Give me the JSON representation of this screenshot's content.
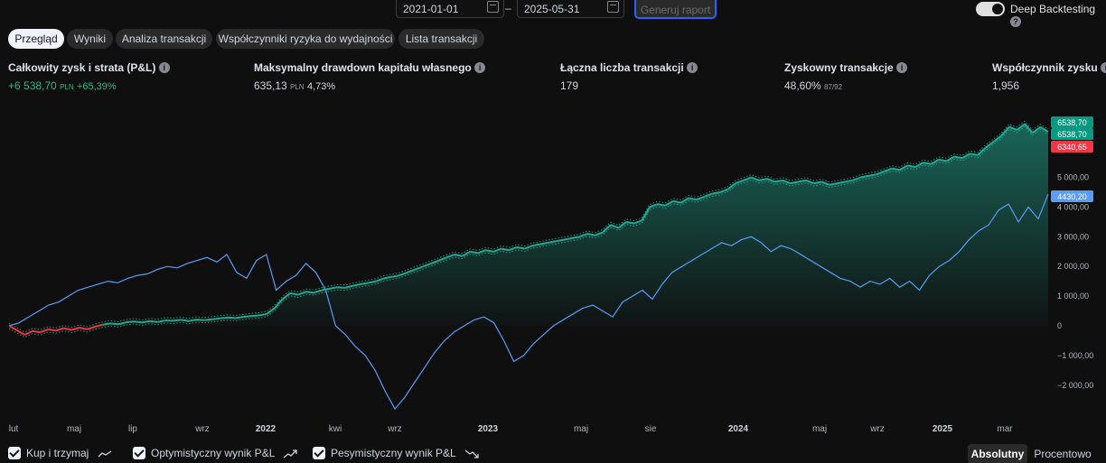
{
  "toolbar": {
    "date_from": "2021-01-01",
    "date_to": "2025-05-31",
    "date_separator": "–",
    "generate_button": "Generuj raport",
    "deep_backtesting_label": "Deep Backtesting",
    "deep_backtesting_enabled": true
  },
  "tabs": [
    {
      "label": "Przegląd",
      "active": true
    },
    {
      "label": "Wyniki",
      "active": false
    },
    {
      "label": "Analiza transakcji",
      "active": false
    },
    {
      "label": "Współczynniki ryzyka do wydajności",
      "active": false
    },
    {
      "label": "Lista transakcji",
      "active": false
    }
  ],
  "stats": {
    "pnl": {
      "label": "Całkowity zysk i strata (P&L)",
      "value": "+6 538,70",
      "unit": "PLN",
      "extra": "+65,39%"
    },
    "drawdown": {
      "label": "Maksymalny drawdown kapitału własnego",
      "value": "635,13",
      "unit": "PLN",
      "extra": "4,73%"
    },
    "trades": {
      "label": "Łączna liczba transakcji",
      "value": "179"
    },
    "profitable": {
      "label": "Zyskowny transakcje",
      "value": "48,60%",
      "extra": "87/92"
    },
    "profit_factor": {
      "label": "Współczynnik zysku",
      "value": "1,956"
    }
  },
  "colors": {
    "equity": "#22ab94",
    "buy_hold": "#5b9cf6",
    "negative": "#f23645",
    "background": "#0f0f0f"
  },
  "chart_data": {
    "type": "area",
    "x_tick_labels": [
      {
        "label": "lut",
        "bold": false
      },
      {
        "label": "maj",
        "bold": false
      },
      {
        "label": "lip",
        "bold": false
      },
      {
        "label": "wrz",
        "bold": false
      },
      {
        "label": "2022",
        "bold": true
      },
      {
        "label": "kwi",
        "bold": false
      },
      {
        "label": "wrz",
        "bold": false
      },
      {
        "label": "2023",
        "bold": true
      },
      {
        "label": "maj",
        "bold": false
      },
      {
        "label": "sie",
        "bold": false
      },
      {
        "label": "2024",
        "bold": true
      },
      {
        "label": "maj",
        "bold": false
      },
      {
        "label": "wrz",
        "bold": false
      },
      {
        "label": "2025",
        "bold": true
      },
      {
        "label": "mar",
        "bold": false
      }
    ],
    "y_tick_labels": [
      "5 000,00",
      "4 000,00",
      "3 000,00",
      "2 000,00",
      "1 000,00",
      "0",
      "−1 000,00",
      "−2 000,00"
    ],
    "y_ticks": [
      5000,
      4000,
      3000,
      2000,
      1000,
      0,
      -1000,
      -2000
    ],
    "ylim": [
      -3000,
      7500
    ],
    "price_tags": [
      {
        "label": "6538,70",
        "value": 6538.7,
        "color": "#089981"
      },
      {
        "label": "6538,70",
        "value": 6538.7,
        "color": "#089981"
      },
      {
        "label": "6340,65",
        "value": 6340.65,
        "color": "#f23645"
      },
      {
        "label": "4430,20",
        "value": 4430.2,
        "color": "#5b9cf6"
      }
    ],
    "series": [
      {
        "name": "P&L",
        "values": [
          0,
          -150,
          -300,
          -180,
          -220,
          -120,
          -160,
          -80,
          -140,
          -60,
          -120,
          -30,
          40,
          80,
          50,
          120,
          150,
          110,
          160,
          130,
          180,
          170,
          200,
          160,
          210,
          190,
          220,
          250,
          280,
          260,
          300,
          330,
          350,
          400,
          600,
          900,
          1100,
          1050,
          1150,
          1120,
          1200,
          1250,
          1300,
          1280,
          1350,
          1400,
          1450,
          1500,
          1600,
          1650,
          1700,
          1800,
          1900,
          2000,
          2100,
          2200,
          2300,
          2400,
          2350,
          2500,
          2450,
          2550,
          2500,
          2600,
          2550,
          2650,
          2600,
          2700,
          2750,
          2800,
          2850,
          2900,
          2950,
          3000,
          3100,
          3050,
          3150,
          3400,
          3300,
          3500,
          3450,
          3550,
          4000,
          4100,
          4050,
          4200,
          4150,
          4300,
          4250,
          4350,
          4450,
          4500,
          4600,
          4800,
          4900,
          5000,
          4900,
          4950,
          4850,
          4900,
          4800,
          4850,
          4900,
          4800,
          4850,
          4750,
          4800,
          4850,
          4900,
          5000,
          5050,
          5100,
          5200,
          5300,
          5250,
          5400,
          5350,
          5500,
          5450,
          5600,
          5550,
          5700,
          5650,
          5800,
          5750,
          6000,
          6200,
          6400,
          6700,
          6600,
          6800,
          6500,
          6700,
          6538.7
        ]
      },
      {
        "name": "Kup i trzymaj",
        "values": [
          0,
          100,
          300,
          500,
          700,
          800,
          1000,
          1200,
          1300,
          1400,
          1500,
          1450,
          1600,
          1700,
          1750,
          1900,
          2000,
          1950,
          2100,
          2200,
          2300,
          2150,
          2400,
          1800,
          1600,
          2200,
          2400,
          1200,
          1500,
          1700,
          2100,
          1800,
          1200,
          0,
          -300,
          -700,
          -1000,
          -1500,
          -2200,
          -2800,
          -2400,
          -1900,
          -1400,
          -900,
          -500,
          -200,
          0,
          200,
          300,
          100,
          -500,
          -1200,
          -1000,
          -600,
          -300,
          0,
          200,
          400,
          600,
          700,
          500,
          300,
          800,
          1000,
          1200,
          900,
          1400,
          1800,
          2000,
          2200,
          2400,
          2600,
          2800,
          2700,
          2900,
          3000,
          2800,
          2500,
          2700,
          2600,
          2400,
          2200,
          2000,
          1800,
          1600,
          1500,
          1300,
          1500,
          1400,
          1600,
          1300,
          1500,
          1200,
          1700,
          2000,
          2200,
          2500,
          2900,
          3200,
          3400,
          3900,
          4100,
          3500,
          4000,
          3600,
          4430.2
        ]
      }
    ]
  },
  "legend": [
    {
      "label": "Kup i trzymaj",
      "checked": true,
      "icon": "trend-flat-icon"
    },
    {
      "label": "Optymistyczny wynik P&L",
      "checked": true,
      "icon": "trend-up-icon"
    },
    {
      "label": "Pesymistyczny wynik P&L",
      "checked": true,
      "icon": "trend-down-icon"
    }
  ],
  "view_modes": [
    {
      "label": "Absolutny",
      "active": true
    },
    {
      "label": "Procentowo",
      "active": false
    }
  ]
}
